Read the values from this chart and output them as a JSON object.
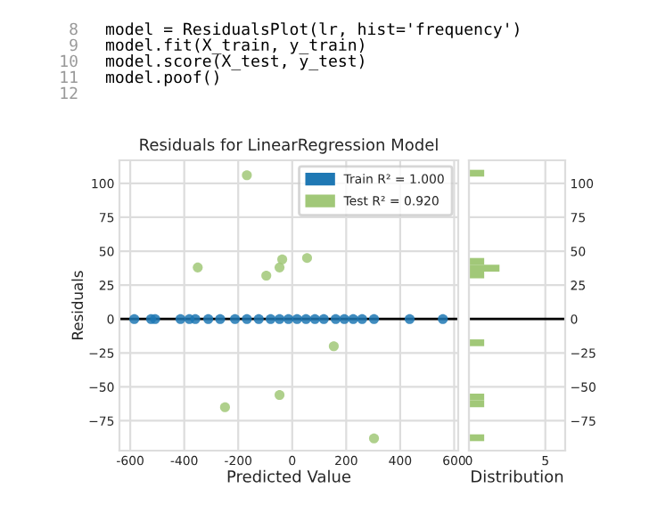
{
  "chart_data": [
    {
      "type": "scatter",
      "title": "Residuals for LinearRegression Model",
      "xlabel": "Predicted Value",
      "ylabel": "Residuals",
      "xlim": [
        -640,
        615
      ],
      "xticks": [
        -600,
        -400,
        -200,
        0,
        200,
        400,
        600
      ],
      "ylim": [
        -97,
        117
      ],
      "yticks": [
        -75,
        -50,
        -25,
        0,
        25,
        50,
        75,
        100
      ],
      "grid": true,
      "legend": "top right",
      "marker": "circle",
      "ref_lines": [
        {
          "axis": "y",
          "value": 0,
          "color": "#000000"
        }
      ],
      "series": [
        {
          "name": "Train R² = 1.000",
          "color": "#1f78b4",
          "x": [
            -585,
            -523,
            -508,
            -414,
            -381,
            -359,
            -311,
            -267,
            -212,
            -168,
            -124,
            -80,
            -47,
            -14,
            18,
            51,
            84,
            117,
            161,
            193,
            226,
            259,
            303,
            435,
            558
          ],
          "values": [
            0,
            0,
            0,
            0,
            0,
            0,
            0,
            0,
            0,
            0,
            0,
            0,
            0,
            0,
            0,
            0,
            0,
            0,
            0,
            0,
            0,
            0,
            0,
            0,
            0
          ]
        },
        {
          "name": "Test R² = 0.920",
          "color": "#a1c878",
          "x": [
            -168,
            -350,
            -96,
            -47,
            -37,
            55,
            154,
            -249,
            -47,
            303
          ],
          "values": [
            106,
            38,
            32,
            38,
            44,
            45,
            -20,
            -65,
            -56,
            -88
          ]
        }
      ],
      "annotations": [
        "8",
        "9",
        "10",
        "11",
        "12",
        "model = ResidualsPlot(lr, hist='frequency')",
        "model.fit(X_train, y_train)",
        "model.score(X_test, y_test)",
        "model.poof()"
      ]
    },
    {
      "type": "histogram",
      "orientation": "horizontal",
      "xlabel": "Distribution",
      "color": "#a1c878",
      "xlim": [
        0,
        6.3
      ],
      "xticks": [
        0,
        5
      ],
      "ylim": [
        -97,
        117
      ],
      "yticks": [
        -75,
        -50,
        -25,
        0,
        25,
        50,
        75,
        100
      ],
      "grid": true,
      "ref_lines": [
        {
          "axis": "y",
          "value": 0,
          "color": "#000000"
        }
      ],
      "bins": [
        -90,
        -85,
        -80,
        -75,
        -70,
        -65,
        -60,
        -55,
        -50,
        -45,
        -40,
        -35,
        -30,
        -25,
        -20,
        -15,
        -10,
        -5,
        0,
        5,
        10,
        15,
        20,
        25,
        30,
        35,
        40,
        45,
        50,
        55,
        60,
        65,
        70,
        75,
        80,
        85,
        90,
        95,
        100,
        105,
        110
      ],
      "values": [
        1,
        0,
        0,
        0,
        0,
        1,
        1,
        0,
        0,
        0,
        0,
        0,
        0,
        0,
        1,
        0,
        0,
        0,
        0,
        0,
        0,
        0,
        0,
        0,
        1,
        2,
        1,
        0,
        0,
        0,
        0,
        0,
        0,
        0,
        0,
        0,
        0,
        0,
        0,
        1
      ]
    }
  ]
}
